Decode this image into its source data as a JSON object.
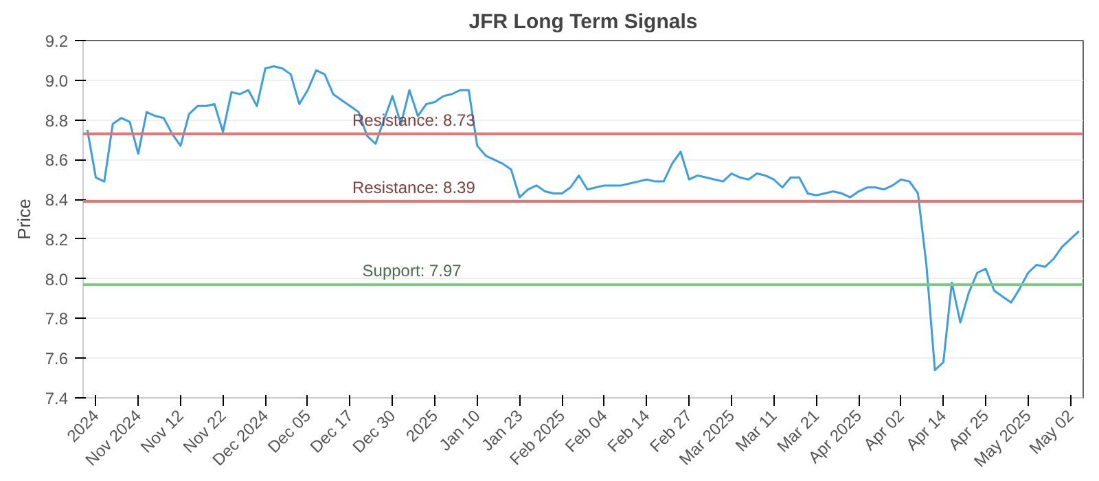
{
  "chart_data": {
    "type": "line",
    "title": "JFR Long Term Signals",
    "ylabel": "Price",
    "categories": [
      null,
      "2024",
      null,
      null,
      null,
      null,
      "Nov 2024",
      null,
      null,
      null,
      null,
      "Nov 12",
      null,
      null,
      null,
      null,
      "Nov 22",
      null,
      null,
      null,
      null,
      "Dec 2024",
      null,
      null,
      null,
      null,
      "Dec 05",
      null,
      null,
      null,
      null,
      "Dec 17",
      null,
      null,
      null,
      null,
      "Dec 30",
      null,
      null,
      null,
      null,
      "2025",
      null,
      null,
      null,
      null,
      "Jan 10",
      null,
      null,
      null,
      null,
      "Jan 23",
      null,
      null,
      null,
      null,
      "Feb 2025",
      null,
      null,
      null,
      null,
      "Feb 04",
      null,
      null,
      null,
      null,
      "Feb 14",
      null,
      null,
      null,
      null,
      "Feb 27",
      null,
      null,
      null,
      null,
      "Mar 2025",
      null,
      null,
      null,
      null,
      "Mar 11",
      null,
      null,
      null,
      null,
      "Mar 21",
      null,
      null,
      null,
      null,
      "Apr 2025",
      null,
      null,
      null,
      null,
      "Apr 02",
      null,
      null,
      null,
      null,
      "Apr 14",
      null,
      null,
      null,
      null,
      "Apr 25",
      null,
      null,
      null,
      null,
      "May 2025",
      null,
      null,
      null,
      null,
      "May 02",
      null
    ],
    "series": [
      {
        "color": "#3a9ee4",
        "values": [
          8.75,
          8.51,
          8.49,
          8.78,
          8.81,
          8.79,
          8.63,
          8.84,
          8.82,
          8.81,
          8.73,
          8.67,
          8.83,
          8.87,
          8.87,
          8.88,
          8.74,
          8.94,
          8.93,
          8.95,
          8.87,
          9.06,
          9.07,
          9.06,
          9.03,
          8.88,
          8.95,
          9.05,
          9.03,
          8.93,
          8.9,
          8.87,
          8.84,
          8.72,
          8.68,
          8.8,
          8.92,
          8.78,
          8.95,
          8.82,
          8.88,
          8.89,
          8.92,
          8.93,
          8.95,
          8.95,
          8.67,
          8.62,
          8.6,
          8.58,
          8.55,
          8.41,
          8.45,
          8.47,
          8.44,
          8.43,
          8.43,
          8.46,
          8.52,
          8.45,
          8.46,
          8.47,
          8.47,
          8.47,
          8.48,
          8.49,
          8.5,
          8.49,
          8.49,
          8.58,
          8.64,
          8.5,
          8.52,
          8.51,
          8.5,
          8.49,
          8.53,
          8.51,
          8.5,
          8.53,
          8.52,
          8.5,
          8.46,
          8.51,
          8.51,
          8.43,
          8.42,
          8.43,
          8.44,
          8.43,
          8.41,
          8.44,
          8.46,
          8.46,
          8.45,
          8.47,
          8.5,
          8.49,
          8.43,
          8.07,
          7.54,
          7.58,
          7.98,
          7.78,
          7.93,
          8.03,
          8.05,
          7.94,
          7.91,
          7.88,
          7.95,
          8.03,
          8.07,
          8.06,
          8.1,
          8.16,
          8.2,
          8.24
        ]
      }
    ],
    "ylim": [
      7.4,
      9.2
    ],
    "yticks": [
      {
        "value": 7.4,
        "label": "7.4"
      },
      {
        "value": 7.6,
        "label": "7.6"
      },
      {
        "value": 7.8,
        "label": "7.8"
      },
      {
        "value": 8.0,
        "label": "8.0"
      },
      {
        "value": 8.2,
        "label": "8.2"
      },
      {
        "value": 8.4,
        "label": "8.4"
      },
      {
        "value": 8.6,
        "label": "8.6"
      },
      {
        "value": 8.8,
        "label": "8.8"
      },
      {
        "value": 9.0,
        "label": "9.0"
      },
      {
        "value": 9.2,
        "label": "9.2"
      }
    ],
    "grid": "y",
    "marker": "none",
    "line_style": "solid",
    "ref_lines": [
      {
        "axis": "y",
        "value": 8.73,
        "label": "Resistance: 8.73",
        "color": "#e57373"
      },
      {
        "axis": "y",
        "value": 8.39,
        "label": "Resistance: 8.39",
        "color": "#e57373"
      },
      {
        "axis": "y",
        "value": 7.97,
        "label": "Support: 7.97",
        "color": "#81c784"
      }
    ]
  }
}
